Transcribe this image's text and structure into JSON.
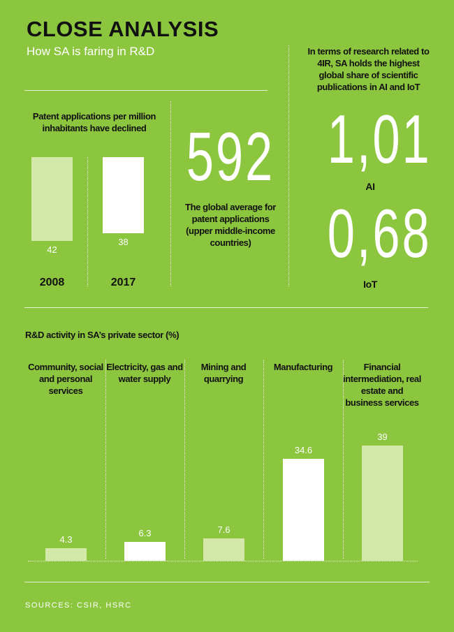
{
  "header": {
    "title": "CLOSE ANALYSIS",
    "subtitle": "How SA is faring in R&D"
  },
  "global_average": {
    "figure": "592",
    "caption": "The global average for patent applications (upper middle-income countries)"
  },
  "publications": {
    "intro": "In terms of research related to 4IR, SA holds the highest global share of scientific publications in AI and IoT",
    "items": [
      {
        "figure": "1,01",
        "label": "AI"
      },
      {
        "figure": "0,68",
        "label": "IoT"
      }
    ]
  },
  "chart_data": [
    {
      "type": "bar",
      "title": "Patent applications per million inhabitants have declined",
      "categories": [
        "2008",
        "2017"
      ],
      "values": [
        42,
        38
      ],
      "colors": [
        "#d3e8a9",
        "#ffffff"
      ]
    },
    {
      "type": "bar",
      "title": "R&D activity in SA’s private sector (%)",
      "categories": [
        "Community, social and personal services",
        "Electricity, gas and water supply",
        "Mining and quarrying",
        "Manufacturing",
        "Financial intermediation, real estate and business services"
      ],
      "values": [
        4.3,
        6.3,
        7.6,
        34.6,
        39
      ],
      "colors": [
        "#d3e8a9",
        "#ffffff",
        "#d3e8a9",
        "#ffffff",
        "#d3e8a9"
      ]
    }
  ],
  "sources": "SOURCES: CSIR, HSRC"
}
